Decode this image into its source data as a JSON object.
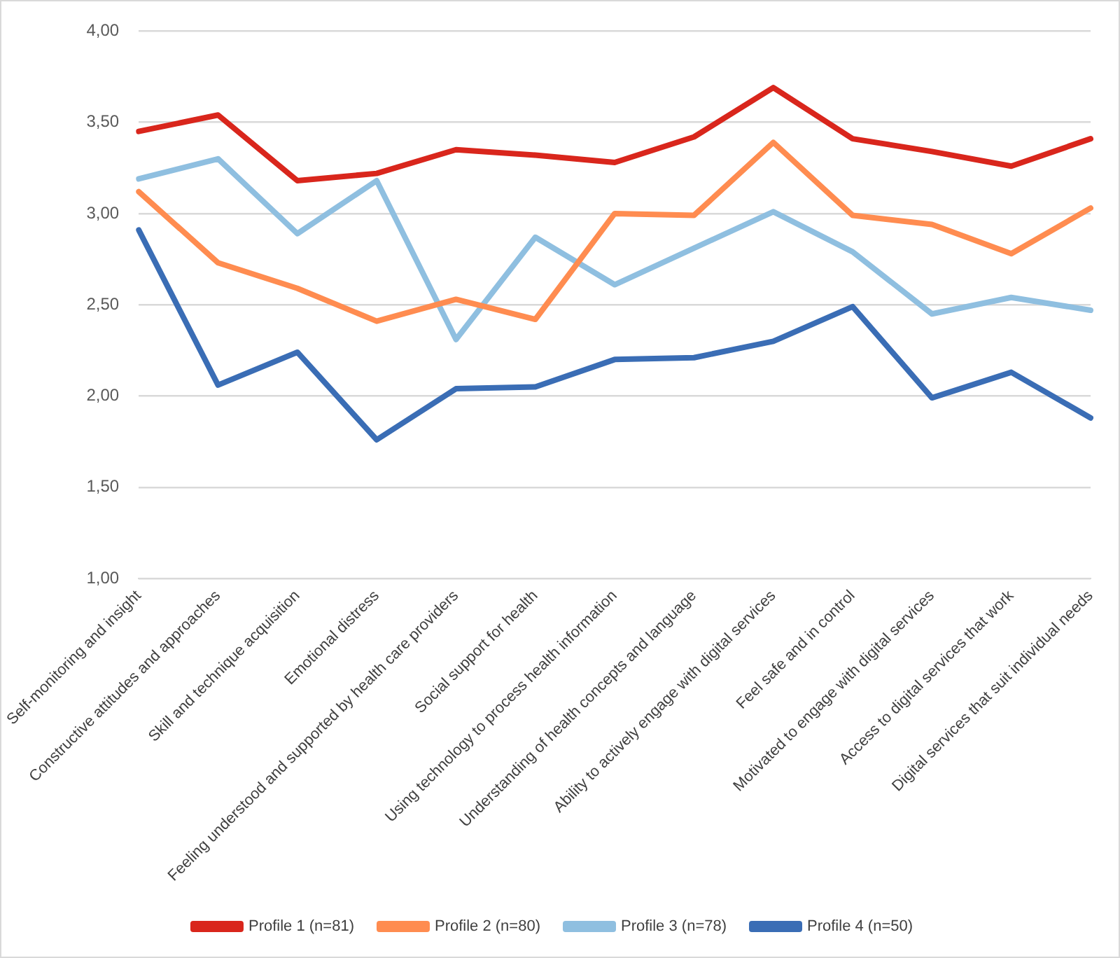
{
  "chart_data": {
    "type": "line",
    "categories": [
      "Self-monitoring and insight",
      "Constructive attitudes and approaches",
      "Skill and technique acquisition",
      "Emotional distress",
      "Feeling understood and supported by health care providers",
      "Social support for health",
      "Using technology to process health information",
      "Understanding of health concepts and language",
      "Ability to actively engage with digital services",
      "Feel safe and in control",
      "Motivated to engage with digital services",
      "Access to digital services that work",
      "Digital services that suit individual needs"
    ],
    "series": [
      {
        "name": "Profile 1 (n=81)",
        "color": "#d9261c",
        "values": [
          3.45,
          3.54,
          3.18,
          3.22,
          3.35,
          3.32,
          3.28,
          3.42,
          3.69,
          3.41,
          3.34,
          3.26,
          3.41
        ]
      },
      {
        "name": "Profile 2 (n=80)",
        "color": "#ff8c50",
        "values": [
          3.12,
          2.73,
          2.59,
          2.41,
          2.53,
          2.42,
          3.0,
          2.99,
          3.39,
          2.99,
          2.94,
          2.78,
          3.03
        ]
      },
      {
        "name": "Profile 3 (n=78)",
        "color": "#8fbfe0",
        "values": [
          3.19,
          3.3,
          2.89,
          3.18,
          2.31,
          2.87,
          2.61,
          2.81,
          3.01,
          2.79,
          2.45,
          2.54,
          2.47
        ]
      },
      {
        "name": "Profile 4 (n=50)",
        "color": "#3a6db5",
        "values": [
          2.91,
          2.06,
          2.24,
          1.76,
          2.04,
          2.05,
          2.2,
          2.21,
          2.3,
          2.49,
          1.99,
          2.13,
          1.88
        ]
      }
    ],
    "ylim": [
      1,
      4
    ],
    "yticks": [
      {
        "value": 1,
        "label": "1,00"
      },
      {
        "value": 1.5,
        "label": "1,50"
      },
      {
        "value": 2,
        "label": "2,00"
      },
      {
        "value": 2.5,
        "label": "2,50"
      },
      {
        "value": 3,
        "label": "3,00"
      },
      {
        "value": 3.5,
        "label": "3,50"
      },
      {
        "value": 4,
        "label": "4,00"
      }
    ],
    "grid": "y",
    "legend": "bottom",
    "marker": "none",
    "line_style": "solid"
  }
}
